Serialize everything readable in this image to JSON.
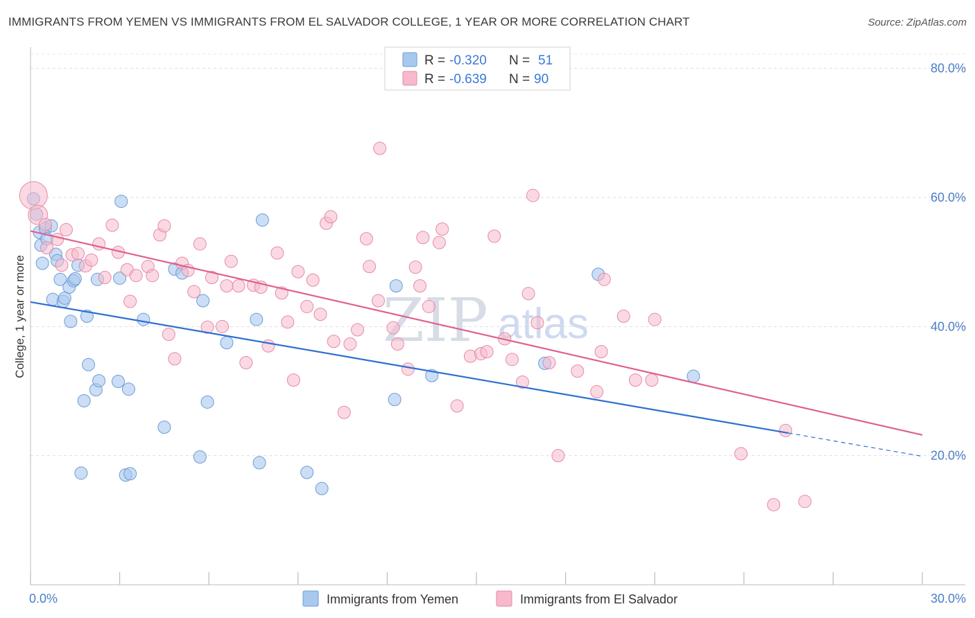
{
  "title": "IMMIGRANTS FROM YEMEN VS IMMIGRANTS FROM EL SALVADOR COLLEGE, 1 YEAR OR MORE CORRELATION CHART",
  "source": "Source: ZipAtlas.com",
  "watermark": {
    "zip": "ZIP",
    "atlas": "atlas"
  },
  "legend": {
    "r_label": "R =",
    "n_label": "N =",
    "rows": [
      {
        "r": "-0.320",
        "n": "51"
      },
      {
        "r": "-0.639",
        "n": "90"
      }
    ]
  },
  "colors": {
    "yemen_fill": "#a9c8ee",
    "yemen_stroke": "#6b9bd6",
    "yemen_line": "#2d6fd0",
    "salvador_fill": "#f7b9cb",
    "salvador_stroke": "#e58aa6",
    "salvador_line": "#e0608c",
    "tick_label": "#4a7ec9"
  },
  "chart_data": {
    "type": "scatter",
    "title": "IMMIGRANTS FROM YEMEN VS IMMIGRANTS FROM EL SALVADOR COLLEGE, 1 YEAR OR MORE CORRELATION CHART",
    "xlabel": "",
    "ylabel": "College, 1 year or more",
    "xlim": [
      0,
      30
    ],
    "ylim": [
      0,
      82
    ],
    "x_tick_labels": [
      "0.0%",
      "30.0%"
    ],
    "y_ticks": [
      20,
      40,
      60,
      80
    ],
    "y_tick_labels": [
      "20.0%",
      "40.0%",
      "60.0%",
      "80.0%"
    ],
    "grid": true,
    "legend_position": "top-center",
    "series": [
      {
        "name": "Immigrants from Yemen",
        "trend": {
          "x": [
            0,
            25.5
          ],
          "y": [
            43.8,
            23.5
          ],
          "dashed_to": [
            30,
            19.9
          ]
        },
        "points": [
          [
            0.1,
            59.8
          ],
          [
            0.2,
            57.4
          ],
          [
            0.3,
            54.6
          ],
          [
            0.35,
            52.6
          ],
          [
            0.4,
            49.8
          ],
          [
            0.5,
            55.2
          ],
          [
            0.55,
            53.6
          ],
          [
            0.7,
            55.6
          ],
          [
            0.75,
            44.2
          ],
          [
            0.85,
            51.2
          ],
          [
            0.9,
            50.2
          ],
          [
            1.0,
            47.3
          ],
          [
            1.1,
            43.9
          ],
          [
            1.15,
            44.4
          ],
          [
            1.3,
            46.1
          ],
          [
            1.35,
            40.8
          ],
          [
            1.45,
            47.1
          ],
          [
            1.5,
            47.4
          ],
          [
            1.6,
            49.5
          ],
          [
            1.7,
            17.3
          ],
          [
            1.8,
            28.5
          ],
          [
            1.9,
            41.6
          ],
          [
            1.95,
            34.1
          ],
          [
            2.2,
            30.2
          ],
          [
            2.25,
            47.3
          ],
          [
            2.3,
            31.6
          ],
          [
            2.95,
            31.5
          ],
          [
            3.0,
            47.5
          ],
          [
            3.05,
            59.4
          ],
          [
            3.2,
            17.0
          ],
          [
            3.3,
            30.3
          ],
          [
            3.35,
            17.2
          ],
          [
            3.8,
            41.1
          ],
          [
            4.5,
            24.4
          ],
          [
            4.85,
            48.9
          ],
          [
            5.1,
            48.3
          ],
          [
            5.7,
            19.8
          ],
          [
            5.8,
            44.0
          ],
          [
            5.95,
            28.3
          ],
          [
            6.6,
            37.5
          ],
          [
            7.6,
            41.1
          ],
          [
            7.7,
            18.9
          ],
          [
            7.8,
            56.5
          ],
          [
            9.3,
            17.4
          ],
          [
            9.8,
            14.9
          ],
          [
            12.3,
            46.3
          ],
          [
            12.25,
            28.7
          ],
          [
            13.5,
            32.4
          ],
          [
            17.3,
            34.3
          ],
          [
            19.1,
            48.1
          ],
          [
            22.3,
            32.3
          ]
        ]
      },
      {
        "name": "Immigrants from El Salvador",
        "trend": {
          "x": [
            0,
            30
          ],
          "y": [
            54.8,
            23.2
          ]
        },
        "points": [
          [
            0.1,
            60.3
          ],
          [
            0.25,
            57.3
          ],
          [
            0.5,
            55.8
          ],
          [
            0.9,
            53.5
          ],
          [
            1.2,
            55.0
          ],
          [
            1.4,
            51.1
          ],
          [
            1.6,
            51.3
          ],
          [
            1.85,
            49.4
          ],
          [
            2.05,
            50.3
          ],
          [
            2.3,
            52.8
          ],
          [
            2.5,
            47.6
          ],
          [
            2.75,
            55.7
          ],
          [
            2.95,
            51.5
          ],
          [
            3.25,
            48.8
          ],
          [
            3.35,
            43.9
          ],
          [
            3.55,
            47.9
          ],
          [
            3.95,
            49.3
          ],
          [
            4.1,
            47.9
          ],
          [
            4.35,
            54.2
          ],
          [
            4.5,
            55.6
          ],
          [
            4.65,
            38.8
          ],
          [
            4.85,
            35.0
          ],
          [
            5.1,
            49.8
          ],
          [
            5.3,
            48.7
          ],
          [
            5.5,
            45.4
          ],
          [
            5.7,
            52.8
          ],
          [
            5.95,
            39.9
          ],
          [
            6.1,
            47.6
          ],
          [
            6.45,
            40.0
          ],
          [
            6.6,
            46.3
          ],
          [
            6.75,
            50.1
          ],
          [
            7.0,
            46.3
          ],
          [
            7.25,
            34.4
          ],
          [
            7.5,
            46.4
          ],
          [
            7.75,
            46.1
          ],
          [
            8.0,
            37.0
          ],
          [
            8.3,
            51.4
          ],
          [
            8.45,
            45.2
          ],
          [
            8.65,
            40.7
          ],
          [
            8.85,
            31.7
          ],
          [
            9.0,
            48.5
          ],
          [
            9.3,
            43.1
          ],
          [
            9.5,
            47.2
          ],
          [
            9.75,
            41.9
          ],
          [
            9.95,
            56.0
          ],
          [
            10.1,
            57.0
          ],
          [
            10.2,
            37.7
          ],
          [
            10.55,
            26.7
          ],
          [
            10.75,
            37.3
          ],
          [
            11.0,
            39.5
          ],
          [
            11.3,
            53.6
          ],
          [
            11.4,
            49.3
          ],
          [
            11.7,
            44.0
          ],
          [
            11.75,
            67.6
          ],
          [
            12.2,
            39.8
          ],
          [
            12.35,
            37.3
          ],
          [
            12.7,
            33.4
          ],
          [
            12.95,
            49.2
          ],
          [
            13.1,
            46.3
          ],
          [
            13.2,
            53.8
          ],
          [
            13.4,
            43.1
          ],
          [
            13.75,
            53.0
          ],
          [
            13.85,
            55.1
          ],
          [
            14.35,
            27.7
          ],
          [
            14.8,
            35.4
          ],
          [
            15.15,
            35.8
          ],
          [
            15.35,
            36.1
          ],
          [
            15.6,
            54.0
          ],
          [
            15.95,
            38.1
          ],
          [
            16.2,
            34.9
          ],
          [
            16.55,
            31.4
          ],
          [
            16.75,
            45.1
          ],
          [
            16.9,
            60.3
          ],
          [
            17.05,
            40.6
          ],
          [
            17.45,
            34.4
          ],
          [
            17.75,
            20.0
          ],
          [
            18.4,
            33.1
          ],
          [
            19.05,
            29.9
          ],
          [
            19.2,
            36.1
          ],
          [
            19.3,
            47.3
          ],
          [
            19.95,
            41.6
          ],
          [
            20.35,
            31.7
          ],
          [
            20.9,
            31.7
          ],
          [
            21.0,
            41.1
          ],
          [
            23.9,
            20.3
          ],
          [
            25.0,
            12.4
          ],
          [
            25.4,
            23.9
          ],
          [
            26.05,
            12.9
          ],
          [
            0.55,
            52.2
          ],
          [
            1.05,
            49.5
          ]
        ]
      }
    ]
  },
  "bottom_legend": [
    "Immigrants from Yemen",
    "Immigrants from El Salvador"
  ]
}
